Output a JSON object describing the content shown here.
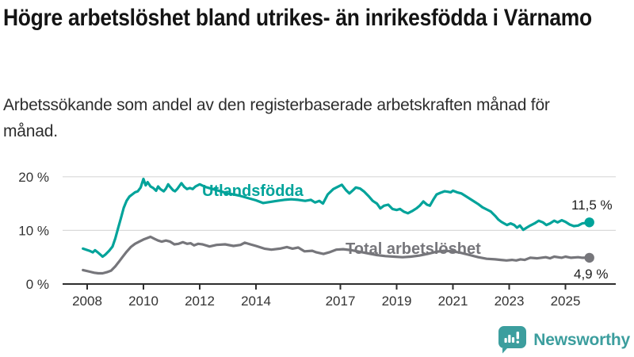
{
  "header": {
    "title": "Högre arbetslöshet bland utrikes- än inrikesfödda i Värnamo",
    "subtitle": "Arbetssökande som andel av den registerbaserade arbetskraften månad för månad."
  },
  "chart_data": {
    "type": "line",
    "unit": "%",
    "grid": "horizontal",
    "x_range": [
      2007.85,
      2026.7
    ],
    "ylim": [
      0,
      21
    ],
    "x_ticks": [
      {
        "value": 2008,
        "label": "2008"
      },
      {
        "value": 2010,
        "label": "2010"
      },
      {
        "value": 2012,
        "label": "2012"
      },
      {
        "value": 2014,
        "label": "2014"
      },
      {
        "value": 2017,
        "label": "2017"
      },
      {
        "value": 2019,
        "label": "2019"
      },
      {
        "value": 2021,
        "label": "2021"
      },
      {
        "value": 2023,
        "label": "2023"
      },
      {
        "value": 2025,
        "label": "2025"
      }
    ],
    "y_ticks": [
      {
        "value": 0,
        "label": "0 %"
      },
      {
        "value": 10,
        "label": "10 %"
      },
      {
        "value": 20,
        "label": "20 %"
      }
    ],
    "series": [
      {
        "id": "utlandsfodda",
        "name": "Utlandsfödda",
        "color": "#00a39a",
        "end_label": "11,5 %",
        "end_value": 11.5,
        "points": [
          [
            2007.85,
            6.6
          ],
          [
            2008.08,
            6.2
          ],
          [
            2008.2,
            5.9
          ],
          [
            2008.28,
            6.3
          ],
          [
            2008.4,
            5.8
          ],
          [
            2008.55,
            5.1
          ],
          [
            2008.65,
            5.5
          ],
          [
            2008.78,
            6.2
          ],
          [
            2008.9,
            7.0
          ],
          [
            2009.0,
            8.5
          ],
          [
            2009.1,
            10.4
          ],
          [
            2009.2,
            12.3
          ],
          [
            2009.3,
            14.2
          ],
          [
            2009.4,
            15.5
          ],
          [
            2009.5,
            16.3
          ],
          [
            2009.6,
            16.7
          ],
          [
            2009.7,
            17.1
          ],
          [
            2009.8,
            17.3
          ],
          [
            2009.9,
            18.0
          ],
          [
            2010.0,
            19.6
          ],
          [
            2010.08,
            18.4
          ],
          [
            2010.15,
            19.0
          ],
          [
            2010.25,
            18.2
          ],
          [
            2010.35,
            17.9
          ],
          [
            2010.45,
            17.4
          ],
          [
            2010.52,
            18.2
          ],
          [
            2010.6,
            17.7
          ],
          [
            2010.72,
            17.3
          ],
          [
            2010.8,
            17.8
          ],
          [
            2010.88,
            18.6
          ],
          [
            2010.95,
            18.1
          ],
          [
            2011.05,
            17.5
          ],
          [
            2011.12,
            17.3
          ],
          [
            2011.2,
            17.7
          ],
          [
            2011.35,
            18.8
          ],
          [
            2011.45,
            18.1
          ],
          [
            2011.55,
            17.7
          ],
          [
            2011.65,
            17.9
          ],
          [
            2011.75,
            17.7
          ],
          [
            2011.85,
            18.2
          ],
          [
            2012.0,
            18.6
          ],
          [
            2012.2,
            18.1
          ],
          [
            2012.4,
            17.8
          ],
          [
            2012.6,
            17.5
          ],
          [
            2012.8,
            17.2
          ],
          [
            2013.0,
            16.9
          ],
          [
            2013.2,
            16.7
          ],
          [
            2013.4,
            16.5
          ],
          [
            2013.6,
            16.2
          ],
          [
            2013.8,
            15.9
          ],
          [
            2014.0,
            15.6
          ],
          [
            2014.25,
            15.1
          ],
          [
            2014.5,
            15.3
          ],
          [
            2014.75,
            15.5
          ],
          [
            2015.0,
            15.7
          ],
          [
            2015.25,
            15.8
          ],
          [
            2015.5,
            15.7
          ],
          [
            2015.75,
            15.5
          ],
          [
            2015.95,
            15.7
          ],
          [
            2016.1,
            15.2
          ],
          [
            2016.25,
            15.5
          ],
          [
            2016.38,
            15.0
          ],
          [
            2016.55,
            16.7
          ],
          [
            2016.75,
            17.7
          ],
          [
            2016.9,
            18.1
          ],
          [
            2017.05,
            18.5
          ],
          [
            2017.2,
            17.5
          ],
          [
            2017.32,
            16.9
          ],
          [
            2017.45,
            17.5
          ],
          [
            2017.55,
            18.0
          ],
          [
            2017.7,
            17.8
          ],
          [
            2017.85,
            17.2
          ],
          [
            2018.0,
            16.4
          ],
          [
            2018.15,
            15.5
          ],
          [
            2018.3,
            15.0
          ],
          [
            2018.42,
            14.1
          ],
          [
            2018.55,
            14.6
          ],
          [
            2018.7,
            14.8
          ],
          [
            2018.85,
            14.0
          ],
          [
            2019.0,
            13.8
          ],
          [
            2019.12,
            14.0
          ],
          [
            2019.25,
            13.5
          ],
          [
            2019.4,
            13.2
          ],
          [
            2019.55,
            13.6
          ],
          [
            2019.7,
            14.1
          ],
          [
            2019.82,
            14.6
          ],
          [
            2019.95,
            15.4
          ],
          [
            2020.08,
            14.8
          ],
          [
            2020.18,
            14.6
          ],
          [
            2020.3,
            15.7
          ],
          [
            2020.42,
            16.7
          ],
          [
            2020.55,
            17.0
          ],
          [
            2020.7,
            17.3
          ],
          [
            2020.82,
            17.2
          ],
          [
            2020.92,
            17.1
          ],
          [
            2021.0,
            17.4
          ],
          [
            2021.15,
            17.1
          ],
          [
            2021.3,
            16.9
          ],
          [
            2021.45,
            16.4
          ],
          [
            2021.6,
            15.9
          ],
          [
            2021.75,
            15.4
          ],
          [
            2021.9,
            14.9
          ],
          [
            2022.05,
            14.3
          ],
          [
            2022.2,
            13.9
          ],
          [
            2022.35,
            13.5
          ],
          [
            2022.5,
            12.7
          ],
          [
            2022.62,
            12.0
          ],
          [
            2022.72,
            11.6
          ],
          [
            2022.82,
            11.3
          ],
          [
            2022.92,
            11.0
          ],
          [
            2023.05,
            11.3
          ],
          [
            2023.18,
            11.0
          ],
          [
            2023.28,
            10.5
          ],
          [
            2023.38,
            10.9
          ],
          [
            2023.5,
            10.1
          ],
          [
            2023.62,
            10.5
          ],
          [
            2023.75,
            10.9
          ],
          [
            2023.9,
            11.3
          ],
          [
            2024.05,
            11.8
          ],
          [
            2024.2,
            11.5
          ],
          [
            2024.32,
            11.0
          ],
          [
            2024.45,
            11.3
          ],
          [
            2024.6,
            11.8
          ],
          [
            2024.72,
            11.5
          ],
          [
            2024.87,
            11.9
          ],
          [
            2025.0,
            11.6
          ],
          [
            2025.15,
            11.1
          ],
          [
            2025.3,
            10.8
          ],
          [
            2025.45,
            10.9
          ],
          [
            2025.6,
            11.3
          ],
          [
            2025.75,
            11.4
          ],
          [
            2025.85,
            11.5
          ]
        ]
      },
      {
        "id": "total",
        "name": "Total arbetslöshet",
        "color": "#76767b",
        "end_label": "4,9 %",
        "end_value": 4.9,
        "points": [
          [
            2007.85,
            2.6
          ],
          [
            2008.1,
            2.3
          ],
          [
            2008.25,
            2.1
          ],
          [
            2008.4,
            2.0
          ],
          [
            2008.55,
            2.0
          ],
          [
            2008.7,
            2.2
          ],
          [
            2008.85,
            2.5
          ],
          [
            2009.0,
            3.3
          ],
          [
            2009.12,
            4.1
          ],
          [
            2009.25,
            5.0
          ],
          [
            2009.4,
            6.0
          ],
          [
            2009.55,
            6.9
          ],
          [
            2009.7,
            7.5
          ],
          [
            2009.85,
            7.9
          ],
          [
            2010.0,
            8.3
          ],
          [
            2010.15,
            8.6
          ],
          [
            2010.25,
            8.8
          ],
          [
            2010.4,
            8.4
          ],
          [
            2010.52,
            8.1
          ],
          [
            2010.65,
            7.9
          ],
          [
            2010.8,
            8.1
          ],
          [
            2010.95,
            7.9
          ],
          [
            2011.1,
            7.4
          ],
          [
            2011.25,
            7.5
          ],
          [
            2011.4,
            7.8
          ],
          [
            2011.55,
            7.5
          ],
          [
            2011.68,
            7.6
          ],
          [
            2011.8,
            7.2
          ],
          [
            2011.95,
            7.5
          ],
          [
            2012.1,
            7.4
          ],
          [
            2012.35,
            7.0
          ],
          [
            2012.6,
            7.3
          ],
          [
            2012.9,
            7.4
          ],
          [
            2013.2,
            7.1
          ],
          [
            2013.45,
            7.3
          ],
          [
            2013.6,
            7.7
          ],
          [
            2013.8,
            7.4
          ],
          [
            2014.0,
            7.1
          ],
          [
            2014.3,
            6.6
          ],
          [
            2014.55,
            6.4
          ],
          [
            2014.85,
            6.6
          ],
          [
            2015.1,
            6.9
          ],
          [
            2015.3,
            6.6
          ],
          [
            2015.5,
            6.8
          ],
          [
            2015.72,
            6.1
          ],
          [
            2016.0,
            6.2
          ],
          [
            2016.15,
            5.9
          ],
          [
            2016.4,
            5.6
          ],
          [
            2016.6,
            5.9
          ],
          [
            2016.85,
            6.4
          ],
          [
            2017.1,
            6.5
          ],
          [
            2017.4,
            6.3
          ],
          [
            2017.7,
            6.0
          ],
          [
            2018.0,
            5.7
          ],
          [
            2018.3,
            5.4
          ],
          [
            2018.6,
            5.2
          ],
          [
            2018.9,
            5.1
          ],
          [
            2019.2,
            5.0
          ],
          [
            2019.5,
            5.1
          ],
          [
            2019.8,
            5.3
          ],
          [
            2020.1,
            5.6
          ],
          [
            2020.4,
            6.0
          ],
          [
            2020.7,
            6.2
          ],
          [
            2021.0,
            6.1
          ],
          [
            2021.3,
            5.8
          ],
          [
            2021.6,
            5.4
          ],
          [
            2021.9,
            5.0
          ],
          [
            2022.2,
            4.7
          ],
          [
            2022.5,
            4.6
          ],
          [
            2022.7,
            4.5
          ],
          [
            2022.9,
            4.4
          ],
          [
            2023.1,
            4.5
          ],
          [
            2023.25,
            4.4
          ],
          [
            2023.4,
            4.6
          ],
          [
            2023.55,
            4.5
          ],
          [
            2023.75,
            4.9
          ],
          [
            2024.0,
            4.8
          ],
          [
            2024.3,
            5.0
          ],
          [
            2024.45,
            4.8
          ],
          [
            2024.6,
            5.1
          ],
          [
            2024.87,
            4.9
          ],
          [
            2025.0,
            5.1
          ],
          [
            2025.2,
            4.9
          ],
          [
            2025.45,
            5.0
          ],
          [
            2025.6,
            4.9
          ],
          [
            2025.85,
            4.9
          ]
        ]
      }
    ]
  },
  "branding": {
    "logo_text": "Newsworthy",
    "brand_color": "#3c9e9e"
  }
}
